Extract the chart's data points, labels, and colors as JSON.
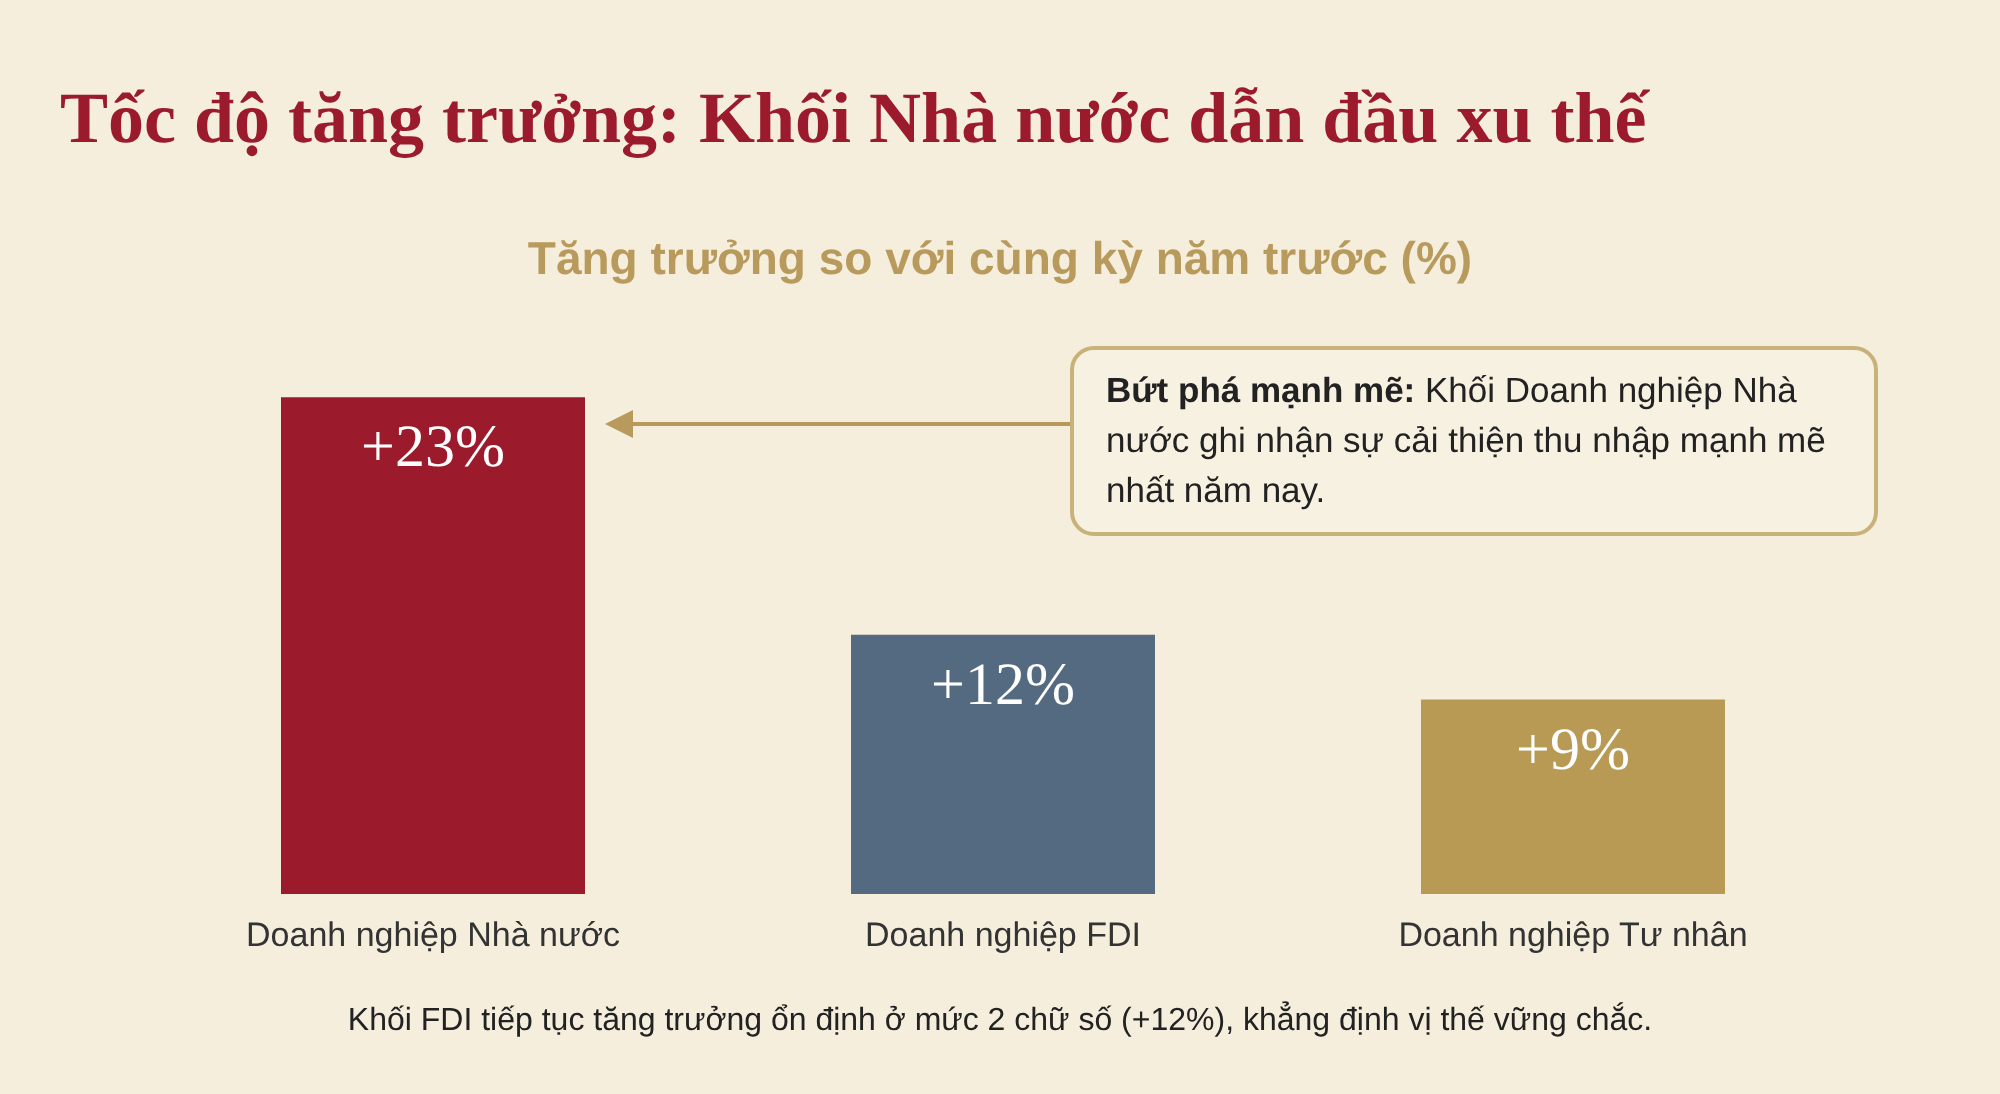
{
  "chart_data": {
    "type": "bar",
    "title": "Tốc độ tăng trưởng: Khối Nhà nước dẫn đầu xu thế",
    "subtitle": "Tăng trưởng so với cùng kỳ năm trước (%)",
    "categories": [
      "Doanh nghiệp Nhà nước",
      "Doanh nghiệp FDI",
      "Doanh nghiệp Tư nhân"
    ],
    "values": [
      23,
      12,
      9
    ],
    "colors": [
      "#9b1b2d",
      "#536a80",
      "#b99a55"
    ],
    "value_labels": [
      "+23%",
      "+12%",
      "+9%"
    ],
    "annotations": [
      "Bứt phá mạnh mẽ: Khối Doanh nghiệp Nhà nước ghi nhận sự cải thiện thu nhập mạnh mẽ nhất năm nay.",
      "Khối FDI tiếp tục tăng trưởng ổn định ở mức 2 chữ số (+12%), khẳng định vị thế vững chắc."
    ],
    "grid": false
  }
}
